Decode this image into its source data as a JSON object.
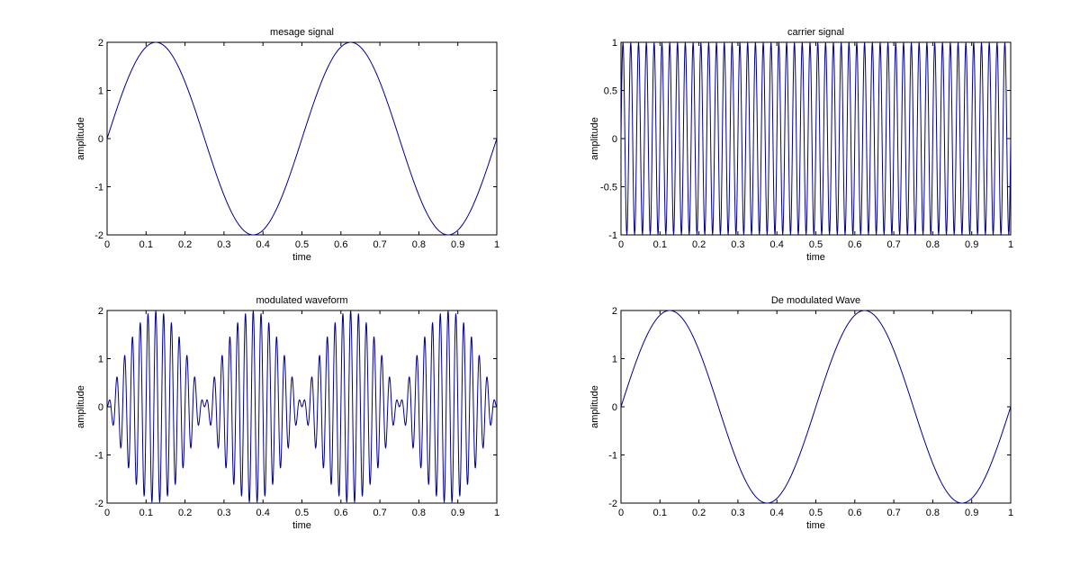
{
  "colors": {
    "line": "#00008b",
    "axes": "#000000",
    "background": "#ffffff"
  },
  "chart_data": [
    {
      "type": "line",
      "title": "mesage signal",
      "xlabel": "time",
      "ylabel": "amplitude",
      "xlim": [
        0,
        1
      ],
      "ylim": [
        -2,
        2
      ],
      "xticks": [
        0,
        0.1,
        0.2,
        0.3,
        0.4,
        0.5,
        0.6,
        0.7,
        0.8,
        0.9,
        1
      ],
      "xtick_labels": [
        "0",
        "0.1",
        "0.2",
        "0.3",
        "0.4",
        "0.5",
        "0.6",
        "0.7",
        "0.8",
        "0.9",
        "1"
      ],
      "yticks": [
        -2,
        -1,
        0,
        1,
        2
      ],
      "ytick_labels": [
        "-2",
        "-1",
        "0",
        "1",
        "2"
      ],
      "grid": false,
      "series": [
        {
          "function": "2*sin(2*pi*2*t)",
          "t_range": [
            0,
            1
          ],
          "samples": 400
        }
      ]
    },
    {
      "type": "line",
      "title": "carrier signal",
      "xlabel": "time",
      "ylabel": "amplitude",
      "xlim": [
        0,
        1
      ],
      "ylim": [
        -1,
        1
      ],
      "xticks": [
        0,
        0.1,
        0.2,
        0.3,
        0.4,
        0.5,
        0.6,
        0.7,
        0.8,
        0.9,
        1
      ],
      "xtick_labels": [
        "0",
        "0.1",
        "0.2",
        "0.3",
        "0.4",
        "0.5",
        "0.6",
        "0.7",
        "0.8",
        "0.9",
        "1"
      ],
      "yticks": [
        -1,
        -0.5,
        0,
        0.5,
        1
      ],
      "ytick_labels": [
        "-1",
        "-0.5",
        "0",
        "0.5",
        "1"
      ],
      "grid": false,
      "series": [
        {
          "function": "sin(2*pi*50*t)",
          "t_range": [
            0,
            1
          ],
          "samples": 1000
        }
      ]
    },
    {
      "type": "line",
      "title": "modulated waveform",
      "xlabel": "time",
      "ylabel": "amplitude",
      "xlim": [
        0,
        1
      ],
      "ylim": [
        -2,
        2
      ],
      "xticks": [
        0,
        0.1,
        0.2,
        0.3,
        0.4,
        0.5,
        0.6,
        0.7,
        0.8,
        0.9,
        1
      ],
      "xtick_labels": [
        "0",
        "0.1",
        "0.2",
        "0.3",
        "0.4",
        "0.5",
        "0.6",
        "0.7",
        "0.8",
        "0.9",
        "1"
      ],
      "yticks": [
        -2,
        -1,
        0,
        1,
        2
      ],
      "ytick_labels": [
        "-2",
        "-1",
        "0",
        "1",
        "2"
      ],
      "grid": false,
      "series": [
        {
          "function": "2*sin(2*pi*2*t)*sin(2*pi*50*t)",
          "t_range": [
            0,
            1
          ],
          "samples": 1200
        }
      ]
    },
    {
      "type": "line",
      "title": "De modulated Wave",
      "xlabel": "time",
      "ylabel": "amplitude",
      "xlim": [
        0,
        1
      ],
      "ylim": [
        -2,
        2
      ],
      "xticks": [
        0,
        0.1,
        0.2,
        0.3,
        0.4,
        0.5,
        0.6,
        0.7,
        0.8,
        0.9,
        1
      ],
      "xtick_labels": [
        "0",
        "0.1",
        "0.2",
        "0.3",
        "0.4",
        "0.5",
        "0.6",
        "0.7",
        "0.8",
        "0.9",
        "1"
      ],
      "yticks": [
        -2,
        -1,
        0,
        1,
        2
      ],
      "ytick_labels": [
        "-2",
        "-1",
        "0",
        "1",
        "2"
      ],
      "grid": false,
      "series": [
        {
          "function": "2*sin(2*pi*2*t)",
          "t_range": [
            0,
            1
          ],
          "samples": 400
        }
      ]
    }
  ]
}
